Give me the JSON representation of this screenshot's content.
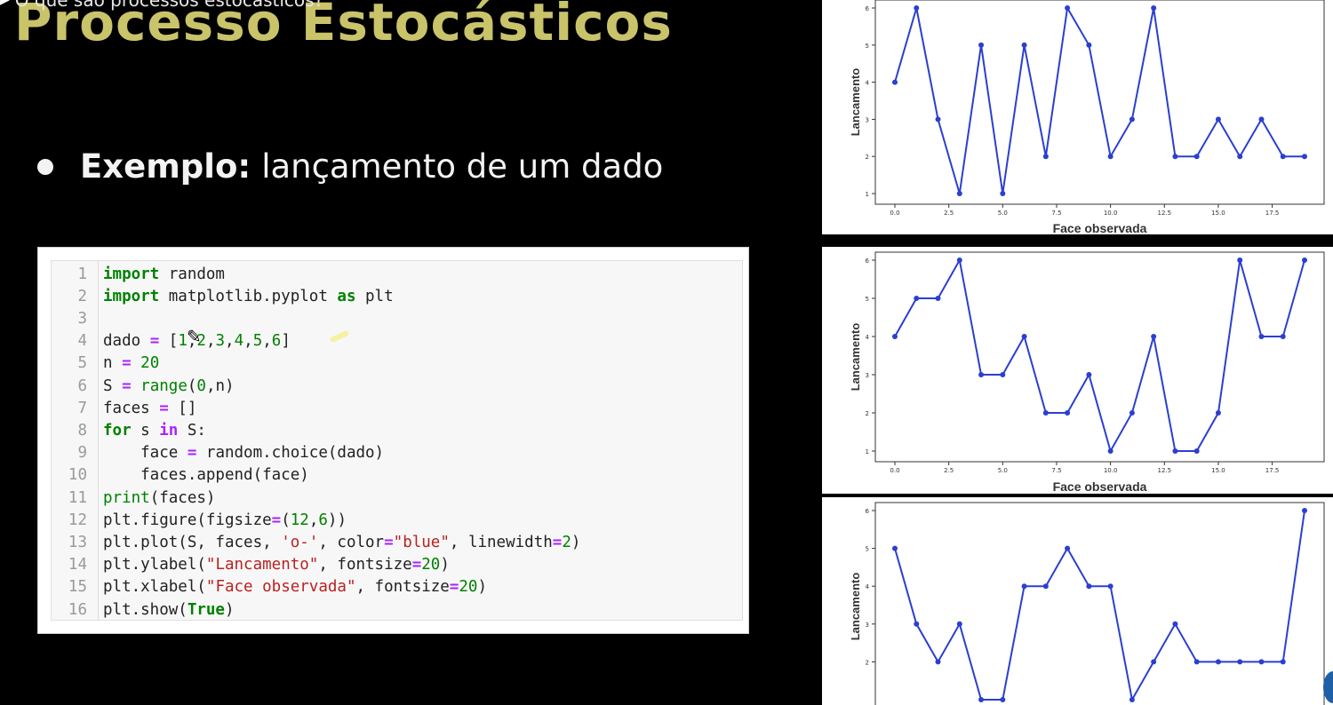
{
  "video": {
    "title": "O que são processos estocásticos?"
  },
  "slide": {
    "title": "Processo Estocásticos",
    "bullet_bold": "Exemplo:",
    "bullet_text": "lançamento de um dado"
  },
  "code": [
    [
      {
        "t": "import",
        "c": "kw"
      },
      {
        "t": " random",
        "c": ""
      }
    ],
    [
      {
        "t": "import",
        "c": "kw"
      },
      {
        "t": " matplotlib.pyplot ",
        "c": ""
      },
      {
        "t": "as",
        "c": "kw"
      },
      {
        "t": " plt",
        "c": ""
      }
    ],
    [],
    [
      {
        "t": "dado ",
        "c": ""
      },
      {
        "t": "=",
        "c": "op"
      },
      {
        "t": " [",
        "c": ""
      },
      {
        "t": "1",
        "c": "num"
      },
      {
        "t": ",",
        "c": ""
      },
      {
        "t": "2",
        "c": "num"
      },
      {
        "t": ",",
        "c": ""
      },
      {
        "t": "3",
        "c": "num"
      },
      {
        "t": ",",
        "c": ""
      },
      {
        "t": "4",
        "c": "num"
      },
      {
        "t": ",",
        "c": ""
      },
      {
        "t": "5",
        "c": "num"
      },
      {
        "t": ",",
        "c": ""
      },
      {
        "t": "6",
        "c": "num"
      },
      {
        "t": "]",
        "c": ""
      }
    ],
    [
      {
        "t": "n ",
        "c": ""
      },
      {
        "t": "=",
        "c": "op"
      },
      {
        "t": " ",
        "c": ""
      },
      {
        "t": "20",
        "c": "num"
      }
    ],
    [
      {
        "t": "S ",
        "c": ""
      },
      {
        "t": "=",
        "c": "op"
      },
      {
        "t": " ",
        "c": ""
      },
      {
        "t": "range",
        "c": "bi"
      },
      {
        "t": "(",
        "c": ""
      },
      {
        "t": "0",
        "c": "num"
      },
      {
        "t": ",n)",
        "c": ""
      }
    ],
    [
      {
        "t": "faces ",
        "c": ""
      },
      {
        "t": "=",
        "c": "op"
      },
      {
        "t": " []",
        "c": ""
      }
    ],
    [
      {
        "t": "for",
        "c": "kw"
      },
      {
        "t": " s ",
        "c": ""
      },
      {
        "t": "in",
        "c": "op"
      },
      {
        "t": " S:",
        "c": ""
      }
    ],
    [
      {
        "t": "    face ",
        "c": ""
      },
      {
        "t": "=",
        "c": "op"
      },
      {
        "t": " random.choice(dado)",
        "c": ""
      }
    ],
    [
      {
        "t": "    faces.append(face)",
        "c": ""
      }
    ],
    [
      {
        "t": "print",
        "c": "bi"
      },
      {
        "t": "(faces)",
        "c": ""
      }
    ],
    [
      {
        "t": "plt.figure(figsize",
        "c": ""
      },
      {
        "t": "=",
        "c": "op"
      },
      {
        "t": "(",
        "c": ""
      },
      {
        "t": "12",
        "c": "num"
      },
      {
        "t": ",",
        "c": ""
      },
      {
        "t": "6",
        "c": "num"
      },
      {
        "t": "))",
        "c": ""
      }
    ],
    [
      {
        "t": "plt.plot(S, faces, ",
        "c": ""
      },
      {
        "t": "'o-'",
        "c": "str"
      },
      {
        "t": ", color",
        "c": ""
      },
      {
        "t": "=",
        "c": "op"
      },
      {
        "t": "\"blue\"",
        "c": "str"
      },
      {
        "t": ", linewidth",
        "c": ""
      },
      {
        "t": "=",
        "c": "op"
      },
      {
        "t": "2",
        "c": "num"
      },
      {
        "t": ")",
        "c": ""
      }
    ],
    [
      {
        "t": "plt.ylabel(",
        "c": ""
      },
      {
        "t": "\"Lancamento\"",
        "c": "str"
      },
      {
        "t": ", fontsize",
        "c": ""
      },
      {
        "t": "=",
        "c": "op"
      },
      {
        "t": "20",
        "c": "num"
      },
      {
        "t": ")",
        "c": ""
      }
    ],
    [
      {
        "t": "plt.xlabel(",
        "c": ""
      },
      {
        "t": "\"Face observada\"",
        "c": "str"
      },
      {
        "t": ", fontsize",
        "c": ""
      },
      {
        "t": "=",
        "c": "op"
      },
      {
        "t": "20",
        "c": "num"
      },
      {
        "t": ")",
        "c": ""
      }
    ],
    [
      {
        "t": "plt.show(",
        "c": ""
      },
      {
        "t": "True",
        "c": "kw"
      },
      {
        "t": ")",
        "c": ""
      }
    ]
  ],
  "icons": {
    "cursor": "pencil-cursor-icon",
    "corner": "chevron-icon"
  },
  "chart_data": [
    {
      "type": "line",
      "x": [
        0,
        1,
        2,
        3,
        4,
        5,
        6,
        7,
        8,
        9,
        10,
        11,
        12,
        13,
        14,
        15,
        16,
        17,
        18,
        19
      ],
      "series": [
        {
          "values": [
            4,
            6,
            3,
            1,
            5,
            1,
            5,
            2,
            6,
            5,
            2,
            3,
            6,
            2,
            2,
            3,
            2,
            3,
            2,
            2
          ],
          "color": "#2b3fd0"
        }
      ],
      "xticks": [
        "0.0",
        "2.5",
        "5.0",
        "7.5",
        "10.0",
        "12.5",
        "15.0",
        "17.5"
      ],
      "yticks": [
        "1",
        "2",
        "3",
        "4",
        "5",
        "6"
      ],
      "xlabel": "Face observada",
      "ylabel": "Lancamento",
      "ylim": [
        1,
        6
      ]
    },
    {
      "type": "line",
      "x": [
        0,
        1,
        2,
        3,
        4,
        5,
        6,
        7,
        8,
        9,
        10,
        11,
        12,
        13,
        14,
        15,
        16,
        17,
        18,
        19
      ],
      "series": [
        {
          "values": [
            4,
            5,
            5,
            6,
            3,
            3,
            4,
            2,
            2,
            3,
            1,
            2,
            4,
            1,
            1,
            2,
            6,
            4,
            4,
            6
          ],
          "color": "#2b3fd0"
        }
      ],
      "xticks": [
        "0.0",
        "2.5",
        "5.0",
        "7.5",
        "10.0",
        "12.5",
        "15.0",
        "17.5"
      ],
      "yticks": [
        "1",
        "2",
        "3",
        "4",
        "5",
        "6"
      ],
      "xlabel": "Face observada",
      "ylabel": "Lancamento",
      "ylim": [
        1,
        6
      ]
    },
    {
      "type": "line",
      "x": [
        0,
        1,
        2,
        3,
        4,
        5,
        6,
        7,
        8,
        9,
        10,
        11,
        12,
        13,
        14,
        15,
        16,
        17,
        18,
        19
      ],
      "series": [
        {
          "values": [
            5,
            3,
            2,
            3,
            1,
            1,
            4,
            4,
            5,
            4,
            4,
            1,
            2,
            3,
            2,
            2,
            2,
            2,
            2,
            6
          ],
          "color": "#2b3fd0"
        }
      ],
      "yticks": [
        "2",
        "3",
        "4",
        "5",
        "6"
      ],
      "xlabel": "",
      "ylabel": "Lancamento",
      "ylim": [
        1,
        6
      ]
    }
  ]
}
